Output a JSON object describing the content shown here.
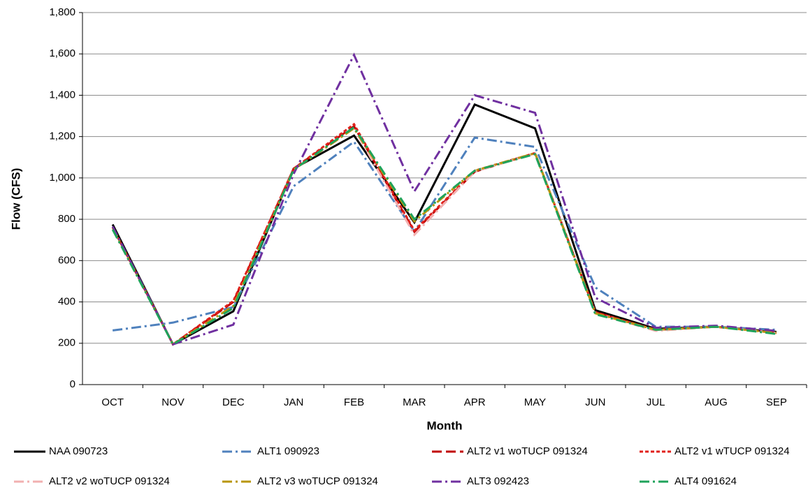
{
  "chart_data": {
    "type": "line",
    "x_label": "Month",
    "y_label": "Flow (CFS)",
    "categories": [
      "OCT",
      "NOV",
      "DEC",
      "JAN",
      "FEB",
      "MAR",
      "APR",
      "MAY",
      "JUN",
      "JUL",
      "AUG",
      "SEP"
    ],
    "ylim": [
      0,
      1800
    ],
    "yticks": [
      0,
      200,
      400,
      600,
      800,
      {
        "value": 1000,
        "label": "1,000"
      },
      {
        "value": 1200,
        "label": "1,200"
      },
      {
        "value": 1400,
        "label": "1,400"
      },
      {
        "value": 1600,
        "label": "1,600"
      },
      {
        "value": 1800,
        "label": "1,800"
      }
    ],
    "grid": true,
    "legend": "bottom",
    "series": [
      {
        "name": "NAA 090723",
        "color": "#000000",
        "linestyle": "solid",
        "values": [
          775,
          195,
          355,
          1045,
          1205,
          785,
          1355,
          1240,
          360,
          270,
          280,
          255
        ]
      },
      {
        "name": "ALT1 090923",
        "color": "#4f81bd",
        "linestyle": "dashdot",
        "values": [
          262,
          300,
          375,
          960,
          1175,
          740,
          1195,
          1150,
          470,
          280,
          280,
          265
        ]
      },
      {
        "name": "ALT2 v1 woTUCP 091324",
        "color": "#c00000",
        "linestyle": "dashed",
        "values": [
          760,
          195,
          400,
          1045,
          1250,
          740,
          1030,
          1120,
          350,
          265,
          280,
          250
        ]
      },
      {
        "name": "ALT2 v1 wTUCP 091324",
        "color": "#e0201b",
        "linestyle": "dotted",
        "values": [
          760,
          195,
          405,
          1045,
          1260,
          745,
          1035,
          1120,
          350,
          265,
          280,
          250
        ]
      },
      {
        "name": "ALT2 v2 woTUCP 091324",
        "color": "#f2b0b0",
        "linestyle": "dashdot",
        "values": [
          760,
          195,
          380,
          1040,
          1240,
          725,
          1030,
          1120,
          345,
          260,
          280,
          250
        ]
      },
      {
        "name": "ALT2 v3 woTUCP 091324",
        "color": "#b8960c",
        "linestyle": "dashdot",
        "values": [
          760,
          195,
          380,
          1040,
          1240,
          790,
          1035,
          1120,
          345,
          265,
          280,
          250
        ]
      },
      {
        "name": "ALT3 092423",
        "color": "#7030a0",
        "linestyle": "dashdot",
        "values": [
          765,
          195,
          290,
          1020,
          1595,
          935,
          1400,
          1315,
          420,
          275,
          285,
          260
        ]
      },
      {
        "name": "ALT4 091624",
        "color": "#1fa35b",
        "linestyle": "dashdot",
        "values": [
          750,
          195,
          370,
          1040,
          1245,
          800,
          1035,
          1115,
          340,
          265,
          280,
          245
        ]
      }
    ]
  }
}
